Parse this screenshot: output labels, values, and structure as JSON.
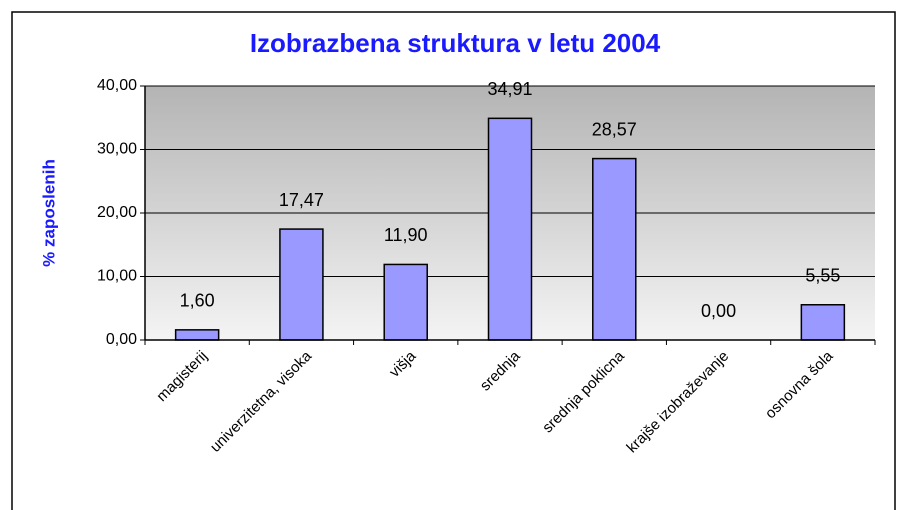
{
  "chart_data": {
    "type": "bar",
    "title": "Izobrazbena struktura v letu 2004",
    "y_label": "% zaposlenih",
    "categories": [
      "magisterij",
      "univerzitetna, visoka",
      "višja",
      "srednja",
      "srednja poklicna",
      "krajše izobraževanje",
      "osnovna šola"
    ],
    "values": [
      1.6,
      17.47,
      11.9,
      34.91,
      28.57,
      0.0,
      5.55
    ],
    "value_labels": [
      "1,60",
      "17,47",
      "11,90",
      "34,91",
      "28,57",
      "0,00",
      "5,55"
    ],
    "color": "#9999ff",
    "ylim": [
      0,
      40
    ],
    "yticks": [
      {
        "value": 0,
        "label": "0,00"
      },
      {
        "value": 10,
        "label": "10,00"
      },
      {
        "value": 20,
        "label": "20,00"
      },
      {
        "value": 30,
        "label": "30,00"
      },
      {
        "value": 40,
        "label": "40,00"
      }
    ],
    "grid": true
  }
}
